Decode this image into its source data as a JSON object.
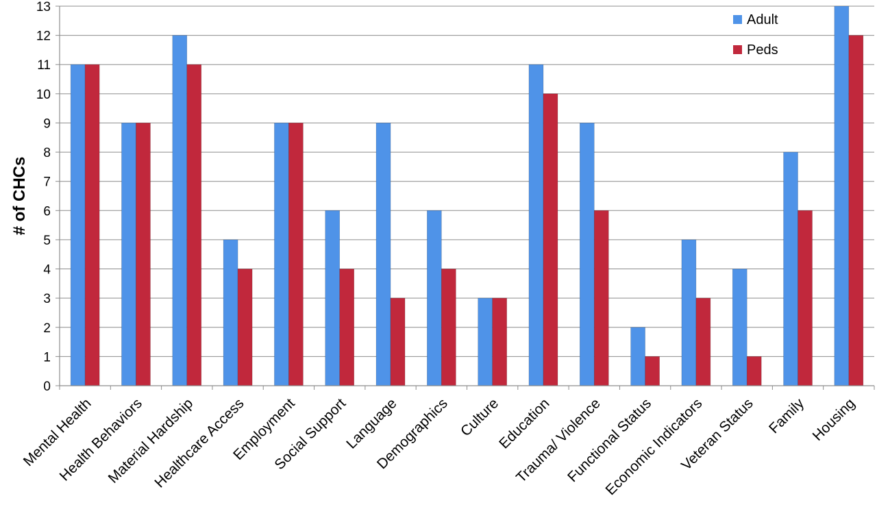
{
  "chart_data": {
    "type": "bar",
    "title": "",
    "xlabel": "",
    "ylabel": "# of CHCs",
    "ylim": [
      0,
      13
    ],
    "yticks": [
      0,
      1,
      2,
      3,
      4,
      5,
      6,
      7,
      8,
      9,
      10,
      11,
      12,
      13
    ],
    "grid": true,
    "legend_position": "top-right",
    "categories": [
      "Mental Health",
      "Health Behaviors",
      "Material Hardship",
      "Healthcare Access",
      "Employment",
      "Social Support",
      "Language",
      "Demographics",
      "Culture",
      "Education",
      "Trauma/ Violence",
      "Functional Status",
      "Economic Indicators",
      "Veteran Status",
      "Family",
      "Housing"
    ],
    "series": [
      {
        "name": "Adult",
        "color": "#4f93e8",
        "values": [
          11,
          9,
          12,
          5,
          9,
          6,
          9,
          6,
          3,
          11,
          9,
          2,
          5,
          4,
          8,
          13
        ]
      },
      {
        "name": "Peds",
        "color": "#c1283c",
        "values": [
          11,
          9,
          11,
          4,
          9,
          4,
          3,
          4,
          3,
          10,
          6,
          1,
          3,
          1,
          6,
          12
        ]
      }
    ]
  }
}
